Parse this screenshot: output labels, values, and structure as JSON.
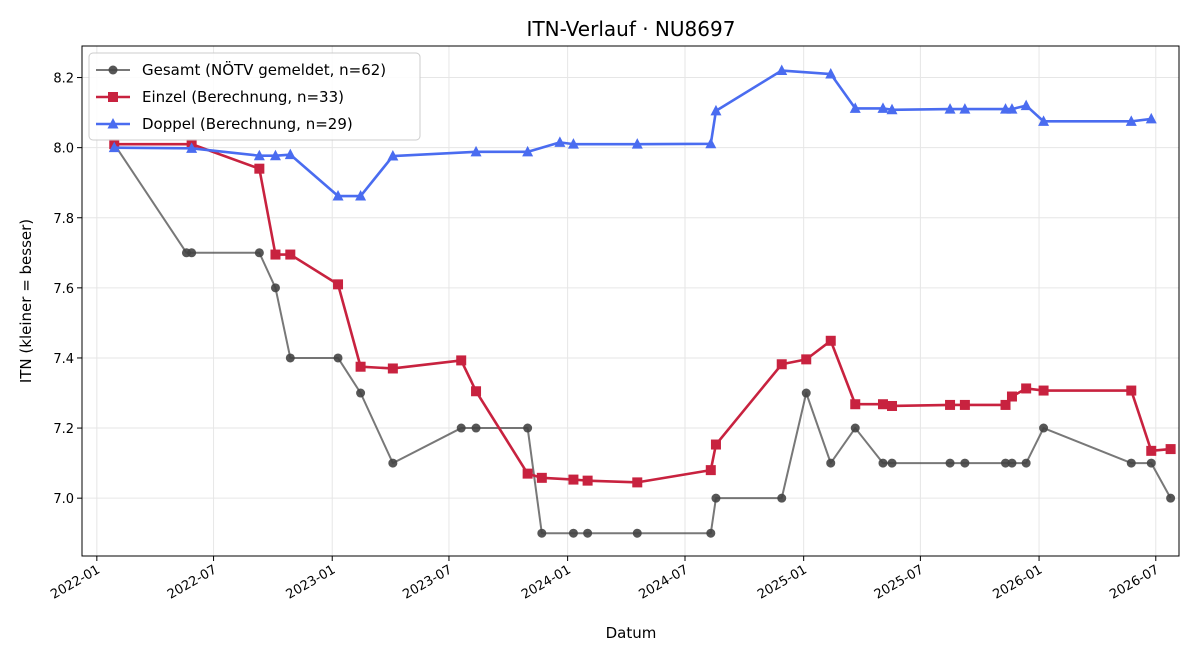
{
  "chart_data": {
    "type": "line",
    "title": "ITN-Verlauf · NU8697",
    "xlabel": "Datum",
    "ylabel": "ITN  (kleiner = besser)",
    "x_ticks": [
      "2022-01",
      "2022-07",
      "2023-01",
      "2023-07",
      "2024-01",
      "2024-07",
      "2025-01",
      "2025-07",
      "2026-01",
      "2026-07"
    ],
    "y_ticks": [
      "7.0",
      "7.2",
      "7.4",
      "7.6",
      "7.8",
      "8.0",
      "8.2"
    ],
    "xlim": [
      "2021-12-09",
      "2026-08-06"
    ],
    "ylim": [
      6.835,
      8.29
    ],
    "grid": true,
    "legend_position": "top-left",
    "series": [
      {
        "name": "Gesamt (NÖTV gemeldet, n=62)",
        "color": "#444444",
        "marker": "circle",
        "points": [
          [
            "2022-01-28",
            8.01
          ],
          [
            "2022-05-20",
            7.7
          ],
          [
            "2022-05-28",
            7.7
          ],
          [
            "2022-09-10",
            7.7
          ],
          [
            "2022-10-05",
            7.6
          ],
          [
            "2022-10-28",
            7.4
          ],
          [
            "2023-01-10",
            7.4
          ],
          [
            "2023-02-14",
            7.3
          ],
          [
            "2023-04-05",
            7.1
          ],
          [
            "2023-07-20",
            7.2
          ],
          [
            "2023-08-12",
            7.2
          ],
          [
            "2023-10-31",
            7.2
          ],
          [
            "2023-11-22",
            6.9
          ],
          [
            "2024-01-10",
            6.9
          ],
          [
            "2024-02-01",
            6.9
          ],
          [
            "2024-04-18",
            6.9
          ],
          [
            "2024-08-10",
            6.9
          ],
          [
            "2024-08-18",
            7.0
          ],
          [
            "2024-11-28",
            7.0
          ],
          [
            "2025-01-05",
            7.3
          ],
          [
            "2025-02-12",
            7.1
          ],
          [
            "2025-03-22",
            7.2
          ],
          [
            "2025-05-04",
            7.1
          ],
          [
            "2025-05-18",
            7.1
          ],
          [
            "2025-08-16",
            7.1
          ],
          [
            "2025-09-08",
            7.1
          ],
          [
            "2025-11-10",
            7.1
          ],
          [
            "2025-11-20",
            7.1
          ],
          [
            "2025-12-12",
            7.1
          ],
          [
            "2026-01-08",
            7.2
          ],
          [
            "2026-05-24",
            7.1
          ],
          [
            "2026-06-24",
            7.1
          ],
          [
            "2026-07-24",
            7.0
          ]
        ]
      },
      {
        "name": "Einzel (Berechnung, n=33)",
        "color": "#c8223f",
        "marker": "square",
        "points": [
          [
            "2022-01-28",
            8.01
          ],
          [
            "2022-05-28",
            8.01
          ],
          [
            "2022-09-10",
            7.94
          ],
          [
            "2022-10-05",
            7.695
          ],
          [
            "2022-10-28",
            7.695
          ],
          [
            "2023-01-10",
            7.61
          ],
          [
            "2023-02-14",
            7.375
          ],
          [
            "2023-04-05",
            7.37
          ],
          [
            "2023-07-20",
            7.393
          ],
          [
            "2023-08-12",
            7.305
          ],
          [
            "2023-10-31",
            7.07
          ],
          [
            "2023-11-22",
            7.058
          ],
          [
            "2024-01-10",
            7.053
          ],
          [
            "2024-02-01",
            7.05
          ],
          [
            "2024-04-18",
            7.045
          ],
          [
            "2024-08-10",
            7.08
          ],
          [
            "2024-08-18",
            7.153
          ],
          [
            "2024-11-28",
            7.382
          ],
          [
            "2025-01-05",
            7.396
          ],
          [
            "2025-02-12",
            7.449
          ],
          [
            "2025-03-22",
            7.268
          ],
          [
            "2025-05-04",
            7.268
          ],
          [
            "2025-05-18",
            7.263
          ],
          [
            "2025-08-16",
            7.266
          ],
          [
            "2025-09-08",
            7.266
          ],
          [
            "2025-11-10",
            7.266
          ],
          [
            "2025-11-20",
            7.29
          ],
          [
            "2025-12-12",
            7.313
          ],
          [
            "2026-01-08",
            7.307
          ],
          [
            "2026-05-24",
            7.307
          ],
          [
            "2026-06-24",
            7.135
          ],
          [
            "2026-07-24",
            7.14
          ]
        ]
      },
      {
        "name": "Doppel (Berechnung, n=29)",
        "color": "#4a6cf0",
        "marker": "triangle",
        "points": [
          [
            "2022-01-28",
            8.0
          ],
          [
            "2022-05-28",
            7.998
          ],
          [
            "2022-09-10",
            7.977
          ],
          [
            "2022-10-05",
            7.977
          ],
          [
            "2022-10-28",
            7.98
          ],
          [
            "2023-01-10",
            7.862
          ],
          [
            "2023-02-14",
            7.862
          ],
          [
            "2023-04-05",
            7.976
          ],
          [
            "2023-08-12",
            7.988
          ],
          [
            "2023-10-31",
            7.988
          ],
          [
            "2023-12-20",
            8.015
          ],
          [
            "2024-01-10",
            8.01
          ],
          [
            "2024-04-18",
            8.01
          ],
          [
            "2024-08-10",
            8.011
          ],
          [
            "2024-08-18",
            8.105
          ],
          [
            "2024-11-28",
            8.22
          ],
          [
            "2025-02-12",
            8.21
          ],
          [
            "2025-03-22",
            8.112
          ],
          [
            "2025-05-04",
            8.112
          ],
          [
            "2025-05-18",
            8.108
          ],
          [
            "2025-08-16",
            8.11
          ],
          [
            "2025-09-08",
            8.11
          ],
          [
            "2025-11-10",
            8.11
          ],
          [
            "2025-11-20",
            8.11
          ],
          [
            "2025-12-12",
            8.12
          ],
          [
            "2026-01-08",
            8.075
          ],
          [
            "2026-05-24",
            8.075
          ],
          [
            "2026-06-24",
            8.082
          ]
        ]
      }
    ]
  }
}
